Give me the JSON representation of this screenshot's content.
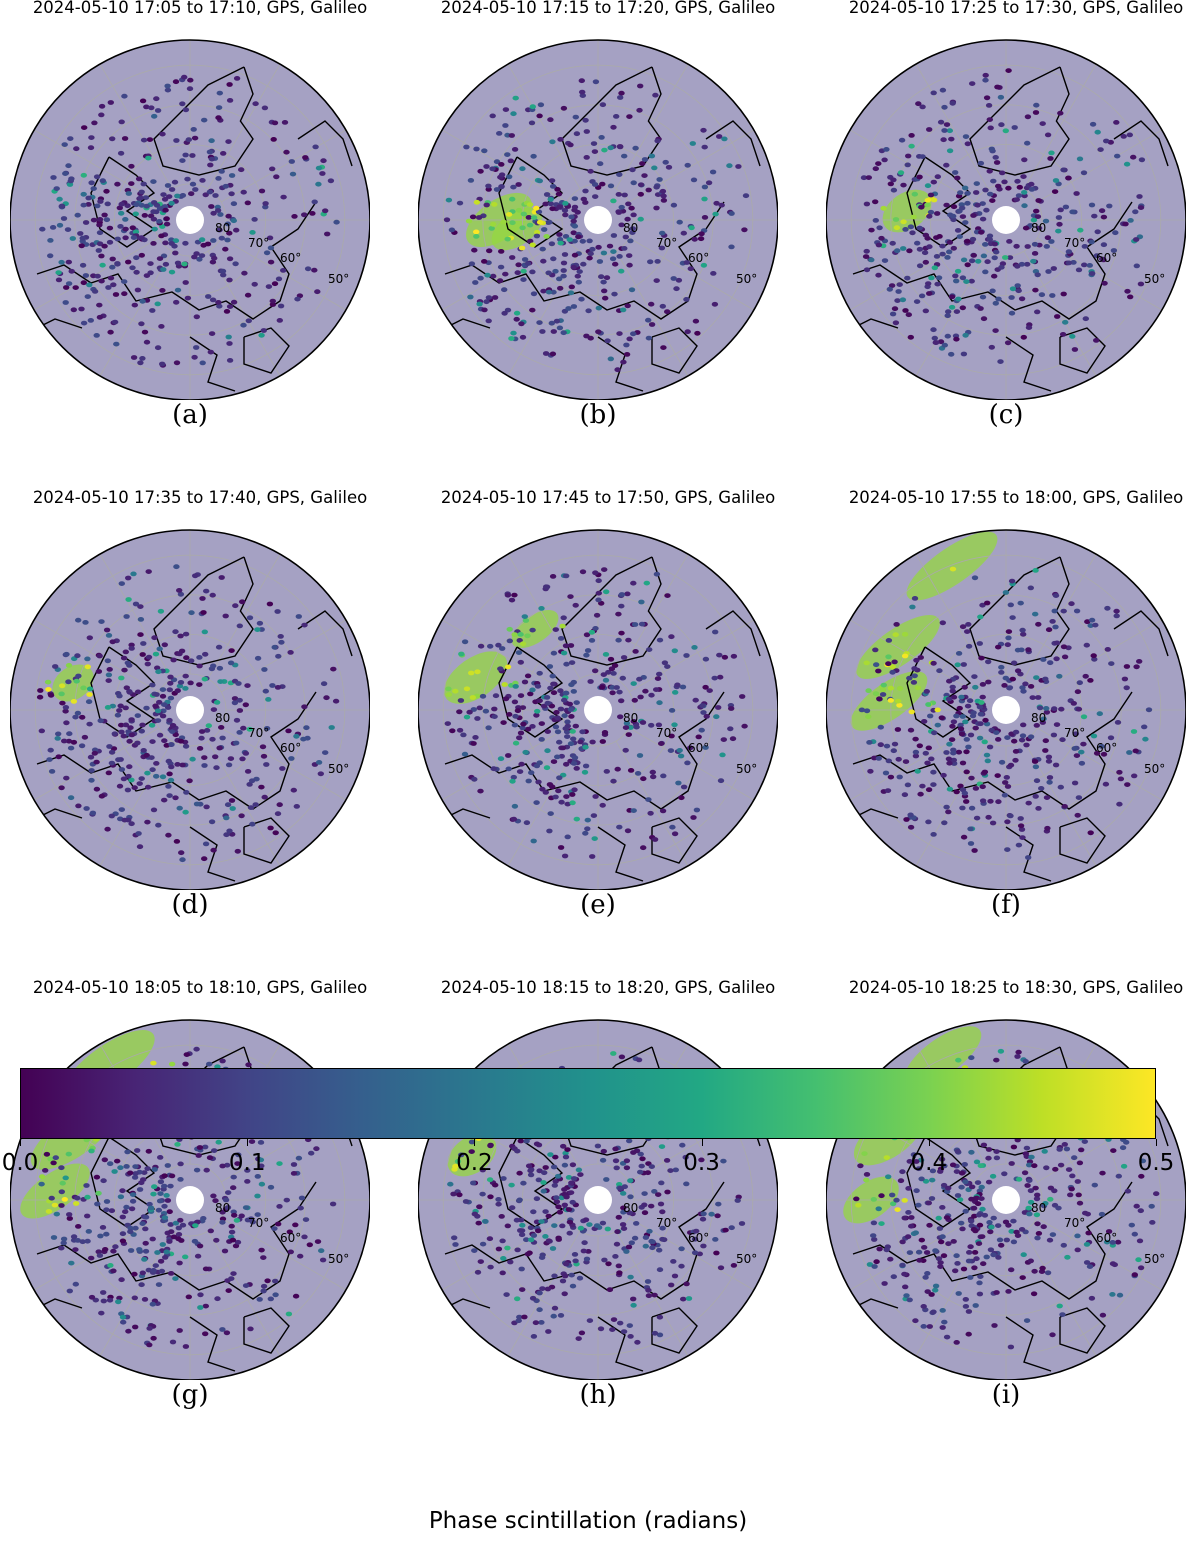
{
  "panels": [
    {
      "title": "2024-05-10 17:05 to 17:10, GPS, Galileo",
      "label": "(a)",
      "hot": []
    },
    {
      "title": "2024-05-10 17:15 to 17:20, GPS, Galileo",
      "label": "(b)",
      "hot": [
        [
          -0.55,
          0.0,
          0.42,
          0.22
        ],
        [
          -0.45,
          -0.05,
          0.32,
          0.18
        ]
      ]
    },
    {
      "title": "2024-05-10 17:25 to 17:30, GPS, Galileo",
      "label": "(c)",
      "hot": [
        [
          -0.55,
          0.05,
          0.3,
          0.2
        ]
      ]
    },
    {
      "title": "2024-05-10 17:35 to 17:40, GPS, Galileo",
      "label": "(d)",
      "hot": [
        [
          -0.65,
          0.15,
          0.25,
          0.18
        ]
      ]
    },
    {
      "title": "2024-05-10 17:45 to 17:50, GPS, Galileo",
      "label": "(e)",
      "hot": [
        [
          -0.68,
          0.18,
          0.4,
          0.22
        ],
        [
          -0.35,
          0.45,
          0.3,
          0.15
        ]
      ]
    },
    {
      "title": "2024-05-10 17:55 to 18:00, GPS, Galileo",
      "label": "(f)",
      "hot": [
        [
          -0.3,
          0.8,
          0.6,
          0.2
        ],
        [
          -0.6,
          0.35,
          0.55,
          0.2
        ],
        [
          -0.65,
          0.05,
          0.5,
          0.2
        ]
      ]
    },
    {
      "title": "2024-05-10 18:05 to 18:10, GPS, Galileo",
      "label": "(g)",
      "hot": [
        [
          -0.45,
          0.75,
          0.6,
          0.22
        ],
        [
          -0.65,
          0.35,
          0.55,
          0.22
        ],
        [
          -0.75,
          0.05,
          0.45,
          0.2
        ]
      ]
    },
    {
      "title": "2024-05-10 18:15 to 18:20, GPS, Galileo",
      "label": "(h)",
      "hot": [
        [
          -0.7,
          0.25,
          0.3,
          0.2
        ]
      ]
    },
    {
      "title": "2024-05-10 18:25 to 18:30, GPS, Galileo",
      "label": "(i)",
      "hot": [
        [
          -0.35,
          0.8,
          0.5,
          0.2
        ],
        [
          -0.65,
          0.35,
          0.45,
          0.22
        ],
        [
          -0.75,
          0.0,
          0.35,
          0.2
        ]
      ]
    }
  ],
  "lat_labels": [
    "80",
    "70°",
    "60°",
    "50°"
  ],
  "colorbar": {
    "label": "Phase scintillation (radians)",
    "ticks": [
      "0.0",
      "0.1",
      "0.2",
      "0.3",
      "0.4",
      "0.5"
    ],
    "range": [
      0.0,
      0.5
    ],
    "colormap": "viridis",
    "colors": [
      "#440154",
      "#482475",
      "#414487",
      "#355f8d",
      "#2a788e",
      "#21918c",
      "#22a884",
      "#44bf70",
      "#7ad151",
      "#bddf26",
      "#fde725"
    ]
  },
  "style": {
    "coverage_color": "#5b5391",
    "map_ring_color": "#000000",
    "grid_color": "#aaaaaa"
  }
}
